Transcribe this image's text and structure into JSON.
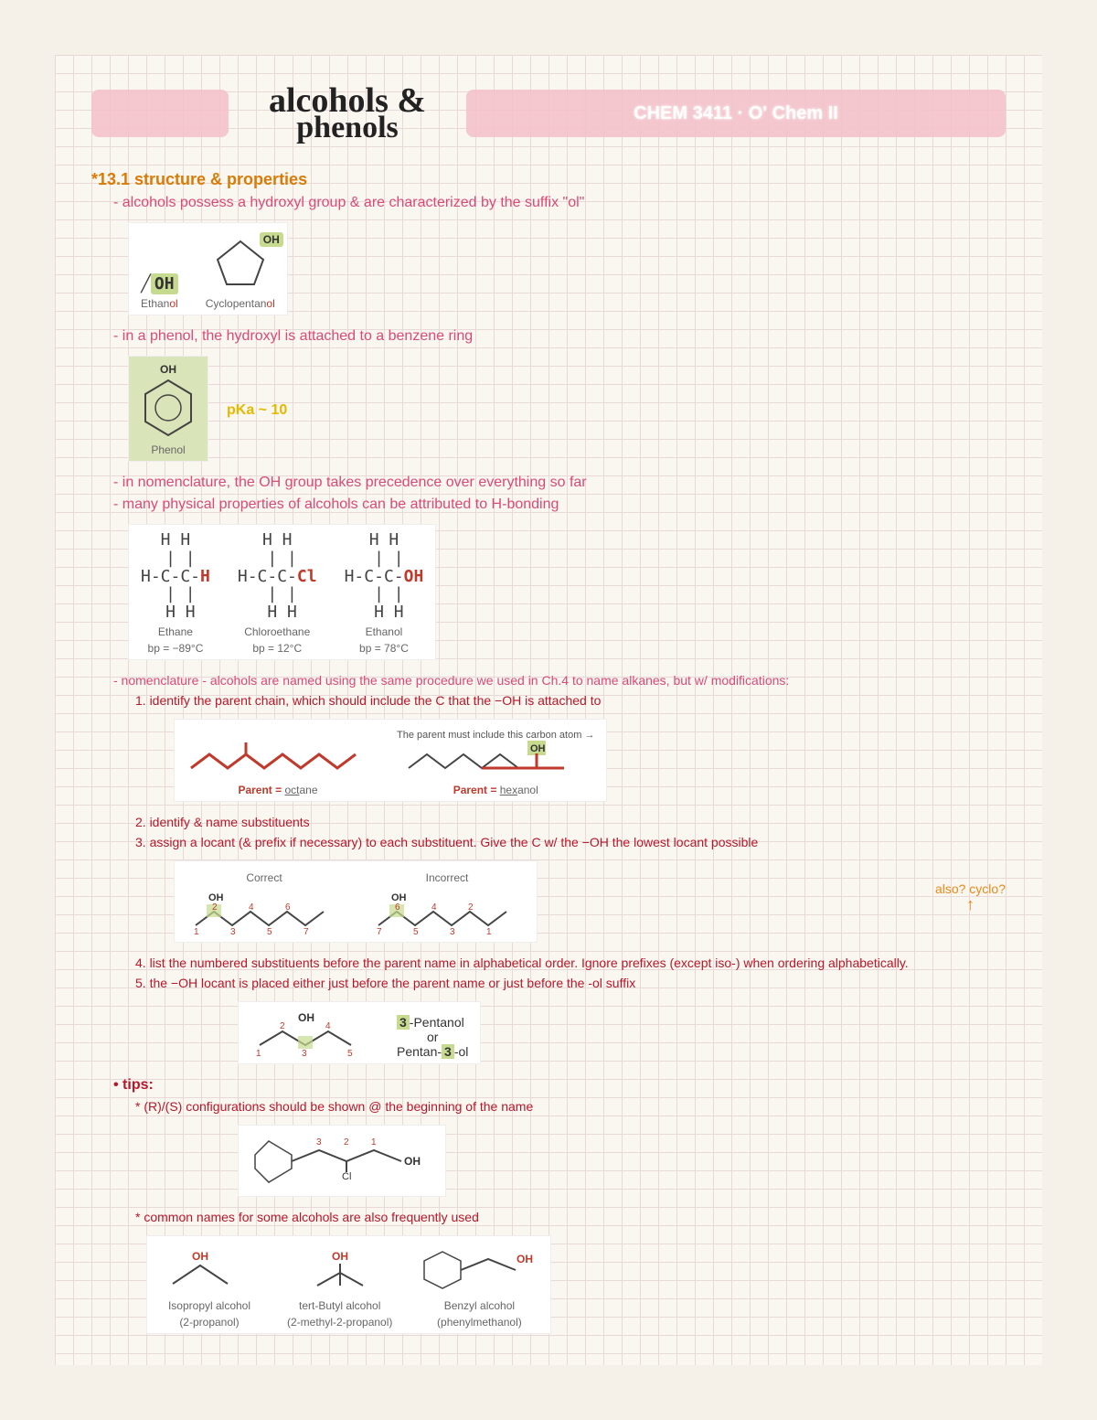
{
  "header": {
    "title_line1": "alcohols  &",
    "title_line2": "phenols",
    "course": "CHEM 3411 · O' Chem II"
  },
  "section_heading": "*13.1 structure & properties",
  "line_alcohols": "- alcohols possess a hydroxyl group & are characterized by the suffix \"ol\"",
  "ethanol": {
    "label": "Ethan",
    "suffix": "ol"
  },
  "cyclopentanol": {
    "label": "Cyclopentan",
    "suffix": "ol"
  },
  "line_phenol": "- in a phenol, the hydroxyl is attached to a benzene ring",
  "phenol_label": "Phenol",
  "pka_note": "pKa ~ 10",
  "line_nomenclature_precedence": "- in nomenclature, the OH group takes precedence over everything so far",
  "line_hbonding": "- many physical properties of alcohols can be attributed to H-bonding",
  "bp_table": [
    {
      "name": "Ethane",
      "bp": "bp = −89°C",
      "end": "H"
    },
    {
      "name": "Chloroethane",
      "bp": "bp = 12°C",
      "end": "Cl"
    },
    {
      "name": "Ethanol",
      "bp": "bp = 78°C",
      "end": "OH"
    }
  ],
  "line_nomen_mods": "- nomenclature - alcohols are named using the same procedure we used in Ch.4 to name alkanes, but w/ modifications:",
  "step1": "1. identify the parent chain, which should include the C that the −OH is attached to",
  "parent_hint": "The parent must include this carbon atom →",
  "parent_octane": "Parent = octane",
  "parent_hexanol": "Parent = hexanol",
  "step2": "2. identify & name substituents",
  "step3": "3. assign a locant (& prefix if necessary) to each substituent. Give the C w/ the −OH the lowest locant possible",
  "correct": "Correct",
  "incorrect": "Incorrect",
  "side_note": "also? cyclo?",
  "step4": "4. list the numbered substituents before the parent name in alphabetical order. Ignore prefixes (except iso-) when ordering alphabetically.",
  "step5": "5. the −OH locant is placed either just before the parent name or just before the -ol suffix",
  "pentanol_a": "3-Pentanol",
  "pentanol_or": "or",
  "pentanol_b": "Pentan-3-ol",
  "tips_heading": "• tips:",
  "tip_rs": "* (R)/(S) configurations should be shown @ the beginning of the name",
  "tip_common": "* common names for some alcohols are also frequently used",
  "common": [
    {
      "name": "Isopropyl alcohol",
      "iupac": "(2-propanol)"
    },
    {
      "name": "tert-Butyl alcohol",
      "iupac": "(2-methyl-2-propanol)"
    },
    {
      "name": "Benzyl alcohol",
      "iupac": "(phenylmethanol)"
    }
  ]
}
